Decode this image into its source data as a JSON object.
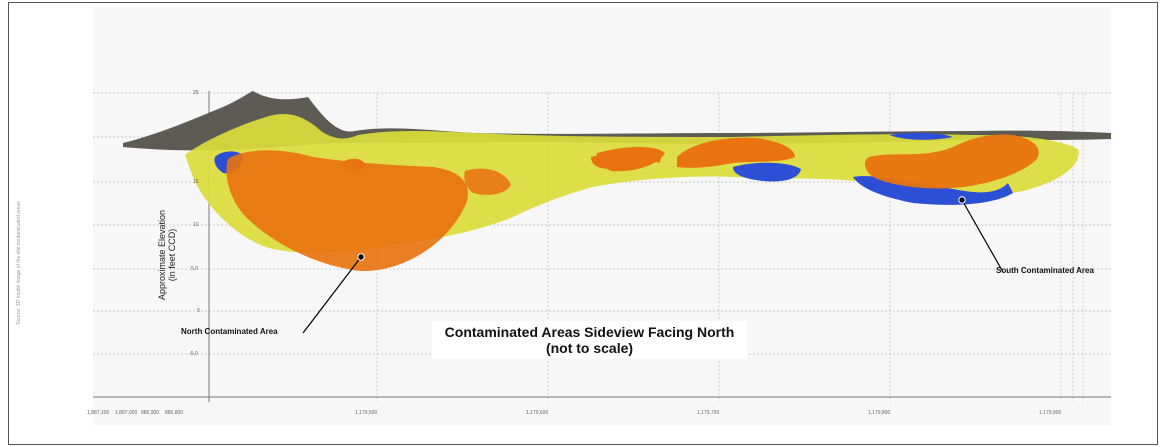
{
  "figure": {
    "title_line1": "Contaminated Areas Sideview Facing North",
    "title_line2": "(not to scale)",
    "y_axis_label_line1": "Approximate Elevation",
    "y_axis_label_line2": "(in feet CCD)",
    "y_ticks": [
      "25",
      "20",
      "15",
      "10",
      "5.0",
      "0",
      "-5.0"
    ],
    "x_ticks": [
      "1,887,100",
      "1,887,000",
      "886,900",
      "886,800",
      "1,179,500",
      "1,179,600",
      "1,179,700",
      "1,179,800",
      "1,179,900"
    ],
    "side_note": "Source: 3D model image of the site contaminated areas"
  },
  "labels": {
    "north": "North Contaminated Area",
    "south": "South Contaminated Area"
  },
  "colors": {
    "orange": "#e8730f",
    "yellow": "#dcdc3a",
    "blue": "#2d4fd6",
    "terrain": "#5c5c54"
  }
}
